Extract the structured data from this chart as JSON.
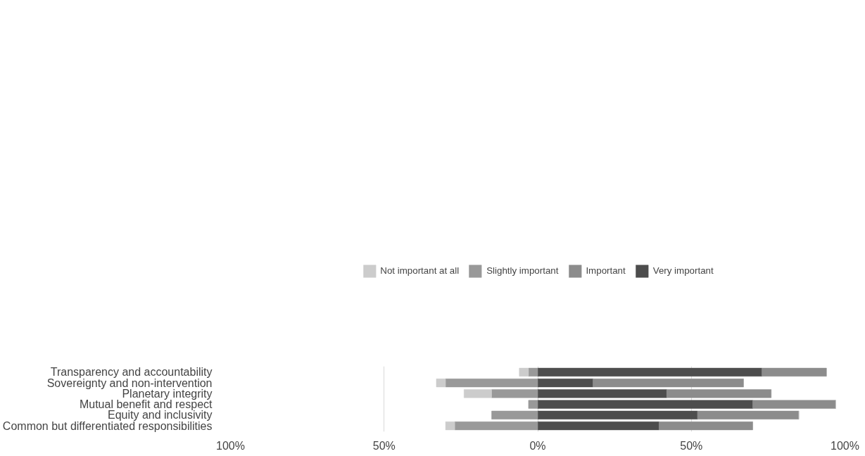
{
  "chart_data": {
    "type": "bar",
    "orientation": "horizontal",
    "stacked": true,
    "categories": [
      "Transparency and accountability",
      "Sovereignty and non-intervention",
      "Planetary integrity",
      "Mutual benefit and respect",
      "Equity and inclusivity",
      "Common but differentiated responsibilities"
    ],
    "series": [
      {
        "name": "Not important at all",
        "color": "#cccccc",
        "values": [
          -3,
          -3,
          -9,
          0,
          0,
          -3
        ]
      },
      {
        "name": "Slightly important",
        "color": "#999999",
        "values": [
          -3,
          -30,
          -15,
          -3,
          -15,
          -27
        ]
      },
      {
        "name": "Important",
        "color": "#8c8c8c",
        "values": [
          21,
          49,
          34,
          27,
          33,
          30.5
        ]
      },
      {
        "name": "Very important",
        "color": "#4d4d4d",
        "values": [
          73,
          18,
          42,
          70,
          52,
          39.5
        ]
      }
    ],
    "xlim": [
      -100,
      100
    ],
    "xticks": [
      {
        "value": -100,
        "label": "100%"
      },
      {
        "value": -50,
        "label": "50%"
      },
      {
        "value": 0,
        "label": "0%"
      },
      {
        "value": 50,
        "label": "50%"
      },
      {
        "value": 100,
        "label": "100%"
      }
    ],
    "grid": "x",
    "legend": "top"
  }
}
